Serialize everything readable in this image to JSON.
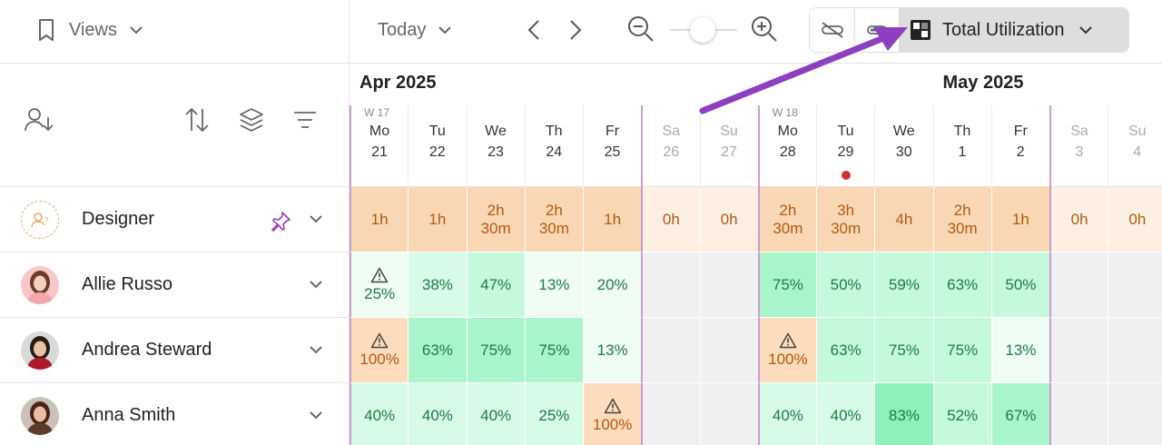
{
  "toolbar": {
    "views_label": "Views",
    "today_label": "Today",
    "view_mode_label": "Total Utilization"
  },
  "colors": {
    "role_full": "#fad7b4",
    "role_weekend": "#fdf0e2",
    "role_text": "#b05a12",
    "over": "#fcdcbc",
    "over_text": "#b05a12",
    "weekend_grey": "#f0f0f2",
    "green_text": "#1f7a45",
    "greens": [
      "#effdf5",
      "#d7fbe8",
      "#c4f9dc",
      "#a8f5cc",
      "#8ef0bb"
    ],
    "week_border": "#c89cd0",
    "annotation_arrow": "#8e3fc0",
    "today_dot": "#d0312d"
  },
  "timeline": {
    "months": [
      {
        "label": "Apr 2025",
        "start": 0
      },
      {
        "label": "May 2025",
        "start": 10
      }
    ],
    "days": [
      {
        "dow": "Mo",
        "date": "21",
        "week": "W 17",
        "weekend": false,
        "today": false
      },
      {
        "dow": "Tu",
        "date": "22",
        "week": "",
        "weekend": false,
        "today": false
      },
      {
        "dow": "We",
        "date": "23",
        "week": "",
        "weekend": false,
        "today": false
      },
      {
        "dow": "Th",
        "date": "24",
        "week": "",
        "weekend": false,
        "today": false
      },
      {
        "dow": "Fr",
        "date": "25",
        "week": "",
        "weekend": false,
        "today": false
      },
      {
        "dow": "Sa",
        "date": "26",
        "week": "",
        "weekend": true,
        "today": false
      },
      {
        "dow": "Su",
        "date": "27",
        "week": "",
        "weekend": true,
        "today": false
      },
      {
        "dow": "Mo",
        "date": "28",
        "week": "W 18",
        "weekend": false,
        "today": false
      },
      {
        "dow": "Tu",
        "date": "29",
        "week": "",
        "weekend": false,
        "today": true
      },
      {
        "dow": "We",
        "date": "30",
        "week": "",
        "weekend": false,
        "today": false
      },
      {
        "dow": "Th",
        "date": "1",
        "week": "",
        "weekend": false,
        "today": false
      },
      {
        "dow": "Fr",
        "date": "2",
        "week": "",
        "weekend": false,
        "today": false
      },
      {
        "dow": "Sa",
        "date": "3",
        "week": "",
        "weekend": true,
        "today": false
      },
      {
        "dow": "Su",
        "date": "4",
        "week": "",
        "weekend": true,
        "today": false
      }
    ]
  },
  "rows": [
    {
      "name": "Designer",
      "kind": "role",
      "pinned": true,
      "cells": [
        {
          "lines": [
            "1h"
          ]
        },
        {
          "lines": [
            "1h"
          ]
        },
        {
          "lines": [
            "2h",
            "30m"
          ]
        },
        {
          "lines": [
            "2h",
            "30m"
          ]
        },
        {
          "lines": [
            "1h"
          ]
        },
        {
          "lines": [
            "0h"
          ],
          "weekend": true
        },
        {
          "lines": [
            "0h"
          ],
          "weekend": true
        },
        {
          "lines": [
            "2h",
            "30m"
          ]
        },
        {
          "lines": [
            "3h",
            "30m"
          ]
        },
        {
          "lines": [
            "4h"
          ]
        },
        {
          "lines": [
            "2h",
            "30m"
          ]
        },
        {
          "lines": [
            "1h"
          ]
        },
        {
          "lines": [
            "0h"
          ],
          "weekend": true
        },
        {
          "lines": [
            "0h"
          ],
          "weekend": true
        }
      ]
    },
    {
      "name": "Allie Russo",
      "kind": "person",
      "avatar": "pink",
      "cells": [
        {
          "value": "25%",
          "level": 0,
          "warn": true
        },
        {
          "value": "38%",
          "level": 1
        },
        {
          "value": "47%",
          "level": 2
        },
        {
          "value": "13%",
          "level": 0
        },
        {
          "value": "20%",
          "level": 0
        },
        {
          "empty": true
        },
        {
          "empty": true
        },
        {
          "value": "75%",
          "level": 3
        },
        {
          "value": "50%",
          "level": 2
        },
        {
          "value": "59%",
          "level": 2
        },
        {
          "value": "63%",
          "level": 2
        },
        {
          "value": "50%",
          "level": 2
        },
        {
          "empty": true
        },
        {
          "empty": true
        }
      ]
    },
    {
      "name": "Andrea Steward",
      "kind": "person",
      "avatar": "red",
      "cells": [
        {
          "value": "100%",
          "over": true,
          "warn": true
        },
        {
          "value": "63%",
          "level": 3
        },
        {
          "value": "75%",
          "level": 3
        },
        {
          "value": "75%",
          "level": 3
        },
        {
          "value": "13%",
          "level": 0
        },
        {
          "empty": true
        },
        {
          "empty": true
        },
        {
          "value": "100%",
          "over": true,
          "warn": true
        },
        {
          "value": "63%",
          "level": 2
        },
        {
          "value": "75%",
          "level": 2
        },
        {
          "value": "75%",
          "level": 2
        },
        {
          "value": "13%",
          "level": 0
        },
        {
          "empty": true
        },
        {
          "empty": true
        }
      ]
    },
    {
      "name": "Anna Smith",
      "kind": "person",
      "avatar": "brown",
      "cells": [
        {
          "value": "40%",
          "level": 1
        },
        {
          "value": "40%",
          "level": 1
        },
        {
          "value": "40%",
          "level": 1
        },
        {
          "value": "25%",
          "level": 1
        },
        {
          "value": "100%",
          "over": true,
          "warn": true
        },
        {
          "empty": true
        },
        {
          "empty": true
        },
        {
          "value": "40%",
          "level": 1
        },
        {
          "value": "40%",
          "level": 1
        },
        {
          "value": "83%",
          "level": 4
        },
        {
          "value": "52%",
          "level": 2
        },
        {
          "value": "67%",
          "level": 3
        },
        {
          "empty": true
        },
        {
          "empty": true
        }
      ]
    }
  ]
}
